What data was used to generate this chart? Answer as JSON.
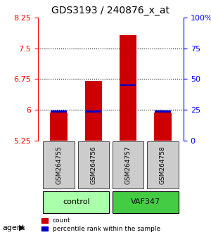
{
  "title": "GDS3193 / 240876_x_at",
  "samples": [
    "GSM264755",
    "GSM264756",
    "GSM264757",
    "GSM264758"
  ],
  "groups": [
    "control",
    "control",
    "VAF347",
    "VAF347"
  ],
  "group_labels": [
    "control",
    "VAF347"
  ],
  "group_colors": [
    "#90EE90",
    "#00CC00"
  ],
  "ylim": [
    5.25,
    8.25
  ],
  "yticks": [
    5.25,
    6.0,
    6.75,
    7.5,
    8.25
  ],
  "ytick_labels": [
    "5.25",
    "6",
    "6.75",
    "7.5",
    "8.25"
  ],
  "right_yticks": [
    0,
    25,
    50,
    75,
    100
  ],
  "right_ytick_labels": [
    "0",
    "25",
    "50",
    "75",
    "100%"
  ],
  "bar_bottom": 5.25,
  "count_values": [
    5.93,
    6.7,
    7.82,
    5.93
  ],
  "percentile_values": [
    5.96,
    5.96,
    6.6,
    5.96
  ],
  "bar_color": "#CC0000",
  "percentile_color": "#0000CC",
  "bar_width": 0.5,
  "legend_count_label": "count",
  "legend_percentile_label": "percentile rank within the sample",
  "xlabel_agent": "agent",
  "sample_area_bg": "#CCCCCC",
  "group_area_control_color": "#AAFFAA",
  "group_area_vaf_color": "#44CC44"
}
